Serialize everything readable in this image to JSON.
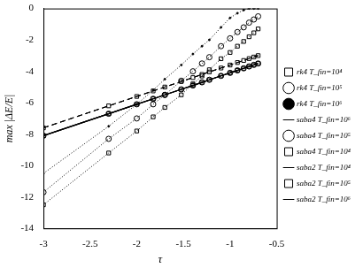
{
  "chart_data": {
    "type": "line",
    "x_label": "τ",
    "y_label": "max |ΔE/E|",
    "x": [
      -3,
      -2.301,
      -2,
      -1.824,
      -1.699,
      -1.523,
      -1.398,
      -1.301,
      -1.222,
      -1.097,
      -1,
      -0.921,
      -0.854,
      -0.796,
      -0.745,
      -0.699
    ],
    "xlim": [
      -3,
      -0.5
    ],
    "xticks": [
      -3,
      -2.5,
      -2,
      -1.5,
      -1,
      -0.5
    ],
    "ylim": [
      -14,
      0
    ],
    "yticks": [
      -14,
      -12,
      -10,
      -8,
      -6,
      -4,
      -2,
      0
    ],
    "grid": false,
    "legend": "right",
    "series": [
      {
        "name": "rk4 T_fin=10⁴",
        "color": "#000000",
        "marker": "square",
        "line_style": "dotted",
        "values": [
          -12.5,
          -9.2,
          -7.8,
          -6.9,
          -6.3,
          -5.5,
          -4.8,
          -4.3,
          -3.9,
          -3.2,
          -2.8,
          -2.4,
          -2.1,
          -1.8,
          -1.55,
          -1.3
        ]
      },
      {
        "name": "rk4 T_fin=10⁵",
        "color": "#000000",
        "marker": "circle",
        "line_style": "dotted",
        "values": [
          -11.7,
          -8.3,
          -7.0,
          -6.1,
          -5.5,
          -4.6,
          -4.0,
          -3.5,
          -3.1,
          -2.4,
          -1.9,
          -1.5,
          -1.2,
          -0.9,
          -0.7,
          -0.5
        ]
      },
      {
        "name": "rk4 T_fin=10⁶",
        "color": "#000000",
        "marker": "dot",
        "line_style": "dotted",
        "values": [
          -10.5,
          -7.5,
          -6.1,
          -5.2,
          -4.5,
          -3.6,
          -2.9,
          -2.4,
          -2.0,
          -1.2,
          -0.6,
          -0.3,
          -0.1,
          0,
          0,
          0
        ]
      },
      {
        "name": "saba4 T_fin=10⁶",
        "color": "#000000",
        "marker": "none",
        "line_style": "solid",
        "values": [
          -8.1,
          -6.7,
          -6.1,
          -5.75,
          -5.5,
          -5.15,
          -4.9,
          -4.7,
          -4.54,
          -4.29,
          -4.1,
          -3.94,
          -3.81,
          -3.69,
          -3.59,
          -3.5
        ]
      },
      {
        "name": "saba4 T_fin=10⁵",
        "color": "#000000",
        "marker": "circle",
        "line_style": "solid",
        "values": [
          -8.1,
          -6.7,
          -6.1,
          -5.75,
          -5.5,
          -5.15,
          -4.9,
          -4.7,
          -4.54,
          -4.29,
          -4.1,
          -3.94,
          -3.81,
          -3.69,
          -3.59,
          -3.5
        ]
      },
      {
        "name": "saba4 T_fin=10⁴",
        "color": "#000000",
        "marker": "square",
        "line_style": "solid",
        "values": [
          -8.1,
          -6.7,
          -6.1,
          -5.75,
          -5.5,
          -5.15,
          -4.9,
          -4.7,
          -4.54,
          -4.29,
          -4.1,
          -3.94,
          -3.81,
          -3.69,
          -3.59,
          -3.5
        ]
      },
      {
        "name": "saba2 T_fin=10⁴",
        "color": "#000000",
        "marker": "none",
        "line_style": "dashed",
        "values": [
          -7.6,
          -6.2,
          -5.6,
          -5.25,
          -5.0,
          -4.65,
          -4.4,
          -4.2,
          -4.04,
          -3.79,
          -3.6,
          -3.44,
          -3.31,
          -3.19,
          -3.09,
          -3.0
        ]
      },
      {
        "name": "saba2 T_fin=10⁵",
        "color": "#000000",
        "marker": "square",
        "line_style": "dashed",
        "values": [
          -7.6,
          -6.2,
          -5.6,
          -5.25,
          -5.0,
          -4.65,
          -4.4,
          -4.2,
          -4.04,
          -3.79,
          -3.6,
          -3.44,
          -3.31,
          -3.19,
          -3.09,
          -3.0
        ]
      },
      {
        "name": "saba2 T_fin=10⁶",
        "color": "#000000",
        "marker": "none",
        "line_style": "dashed",
        "values": [
          -7.6,
          -6.2,
          -5.6,
          -5.25,
          -5.0,
          -4.65,
          -4.4,
          -4.2,
          -4.04,
          -3.79,
          -3.6,
          -3.44,
          -3.31,
          -3.19,
          -3.09,
          -3.0
        ]
      }
    ]
  }
}
